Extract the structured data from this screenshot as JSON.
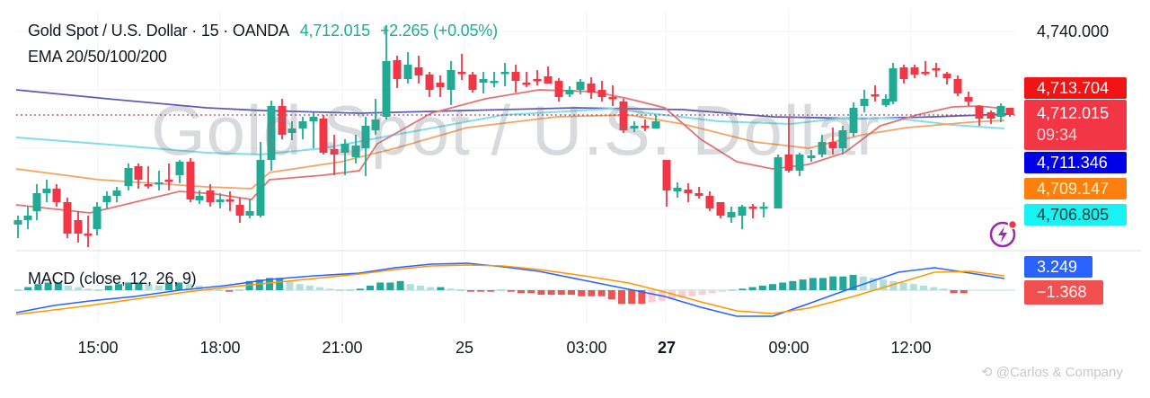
{
  "header": {
    "symbol": "Gold Spot / U.S. Dollar · 15 · OANDA",
    "last_price": "4,712.015",
    "change": "+2.265 (+0.05%)",
    "indicator_1": "EMA 20/50/100/200",
    "indicator_2": "MACD (close, 12, 26, 9)"
  },
  "watermark": "Gold Spot / U.S. Dollar",
  "price_axis": {
    "top_label": "4,740.000",
    "tags": [
      {
        "label": "4,713.704",
        "color": "#f01414",
        "text_color": "#ffffff"
      },
      {
        "label": "4,712.015",
        "sub": "09:34",
        "color": "#f23645",
        "text_color": "#ffffff"
      },
      {
        "label": "4,711.346",
        "color": "#0000e6",
        "text_color": "#ffffff"
      },
      {
        "label": "4,709.147",
        "color": "#ff7f0e",
        "text_color": "#fff3c4"
      },
      {
        "label": "4,706.805",
        "color": "#19f2f2",
        "text_color": "#0b3b3b"
      }
    ],
    "macd_tags": [
      {
        "label": "3.249",
        "color": "#2962ff"
      },
      {
        "label": "−1.368",
        "color": "#f0504f"
      }
    ]
  },
  "time_axis": [
    "15:00",
    "18:00",
    "21:00",
    "25",
    "03:00",
    "27",
    "09:00",
    "12:00"
  ],
  "credit": "@Carlos & Company",
  "colors": {
    "up": "#22ab94",
    "down": "#f23645",
    "ema20": "#e57373",
    "ema50": "#f4a460",
    "ema100": "#80deea",
    "ema200": "#5c5cb8",
    "macd": "#2962ff",
    "signal": "#ff9800"
  },
  "chart_data": {
    "type": "candlestick",
    "title": "Gold Spot / U.S. Dollar · 15 · OANDA",
    "interval": "15m",
    "last_price": 4712.015,
    "change": 2.265,
    "change_pct": 0.05,
    "y_top_label": 4740.0,
    "ema": {
      "ema20": 4713.704,
      "ema50": 4709.147,
      "ema100": 4706.805,
      "ema200": 4711.346
    },
    "macd": {
      "params": [
        12,
        26,
        9
      ],
      "macd": 3.249,
      "histogram": -1.368
    },
    "x_ticks": [
      "15:00",
      "18:00",
      "21:00",
      "25",
      "03:00",
      "27",
      "09:00",
      "12:00"
    ],
    "grid": true
  }
}
